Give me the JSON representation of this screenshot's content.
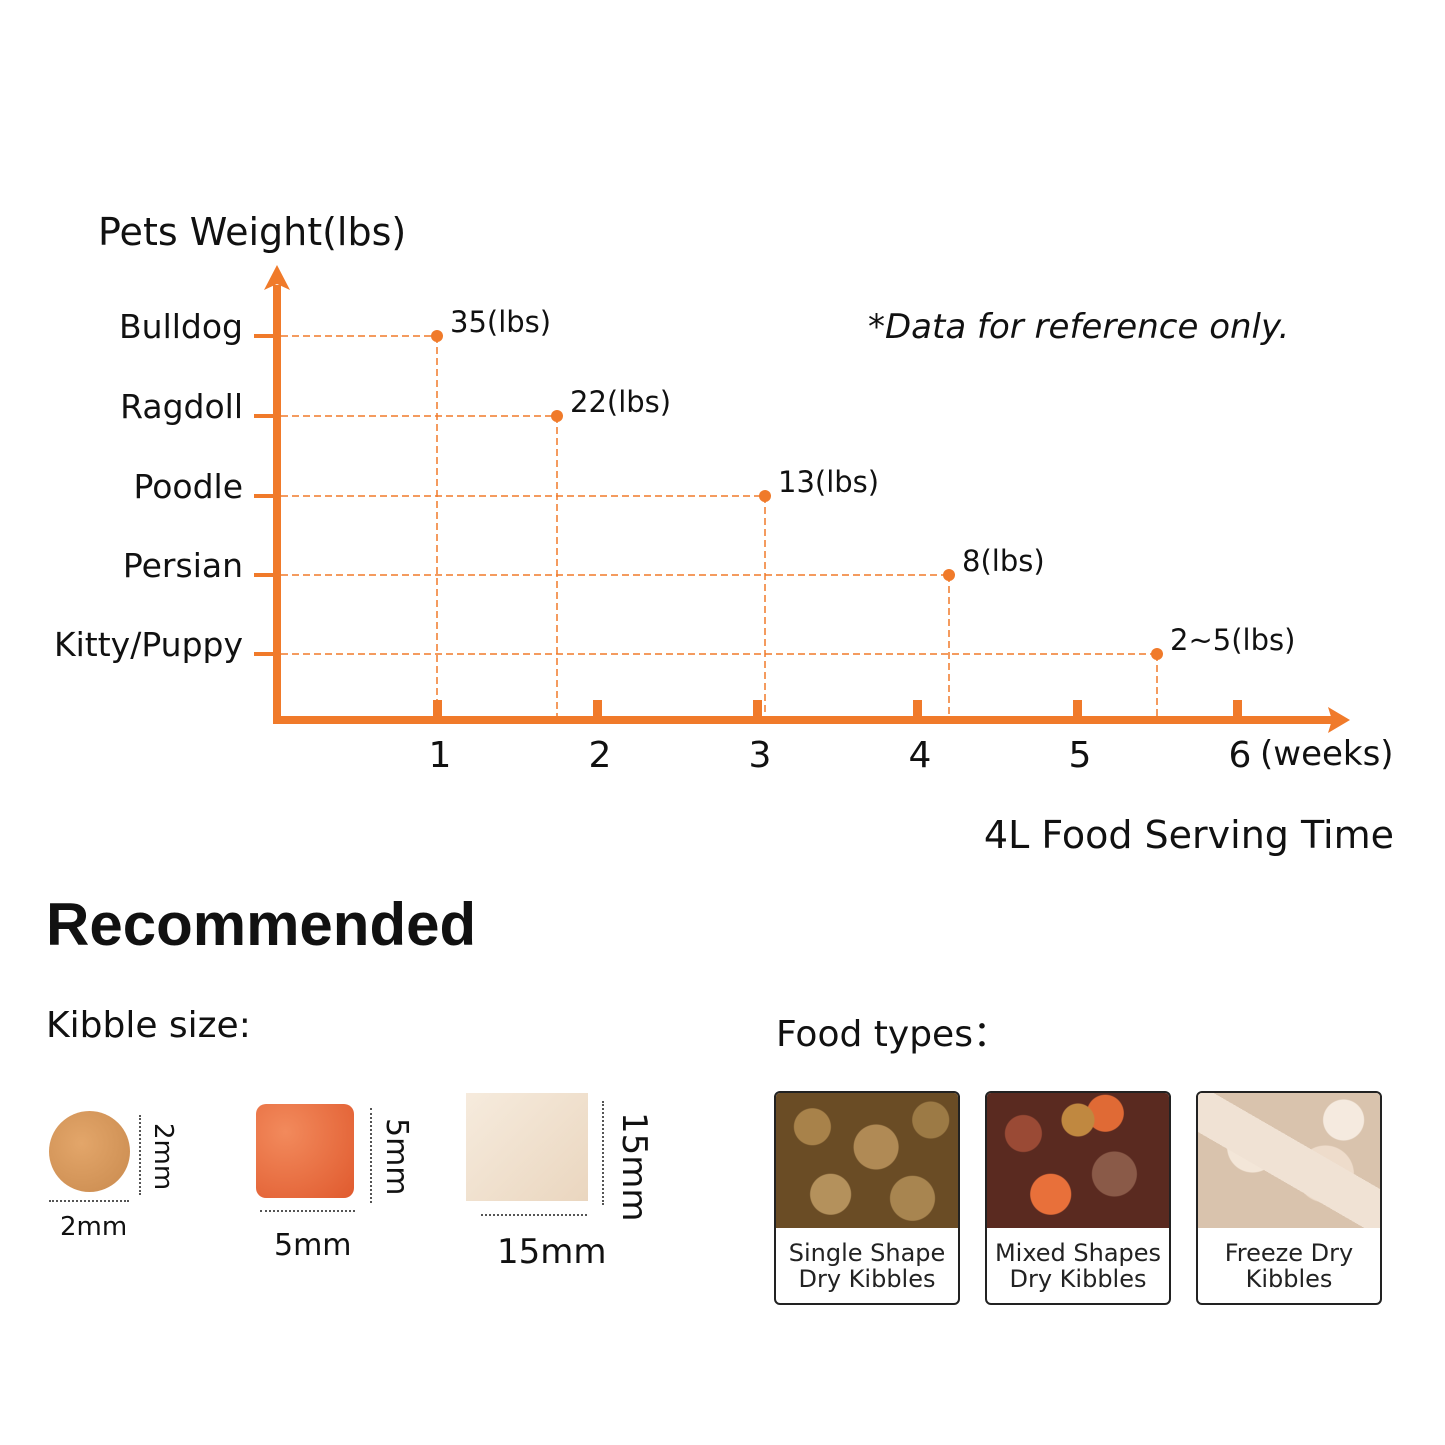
{
  "chart_data": {
    "type": "scatter",
    "ylabel": "Pets Weight(lbs)",
    "xlabel": "4L Food Serving Time",
    "x_unit": "(weeks)",
    "note": "*Data for reference only.",
    "x_ticks": [
      1,
      2,
      3,
      4,
      5,
      6
    ],
    "xlim": [
      0,
      6.5
    ],
    "categories": [
      "Bulldog",
      "Ragdoll",
      "Poodle",
      "Persian",
      "Kitty/Puppy"
    ],
    "points": [
      {
        "category": "Bulldog",
        "weeks": 1.0,
        "label": "35(lbs)"
      },
      {
        "category": "Ragdoll",
        "weeks": 1.75,
        "label": "22(lbs)"
      },
      {
        "category": "Poodle",
        "weeks": 3.05,
        "label": "13(lbs)"
      },
      {
        "category": "Persian",
        "weeks": 4.2,
        "label": "8(lbs)"
      },
      {
        "category": "Kitty/Puppy",
        "weeks": 5.5,
        "label": "2~5(lbs)"
      }
    ],
    "color": "#F07A2A",
    "grid": false
  },
  "recommended": {
    "title": "Recommended",
    "kibble_title": "Kibble size:",
    "kibbles": [
      {
        "width": "2mm",
        "height": "2mm"
      },
      {
        "width": "5mm",
        "height": "5mm"
      },
      {
        "width": "15mm",
        "height": "15mm"
      }
    ],
    "food_title": "Food types：",
    "foods": [
      {
        "line1": "Single Shape",
        "line2": "Dry Kibbles"
      },
      {
        "line1": "Mixed Shapes",
        "line2": "Dry Kibbles"
      },
      {
        "line1": "Freeze Dry",
        "line2": "Kibbles"
      }
    ]
  }
}
